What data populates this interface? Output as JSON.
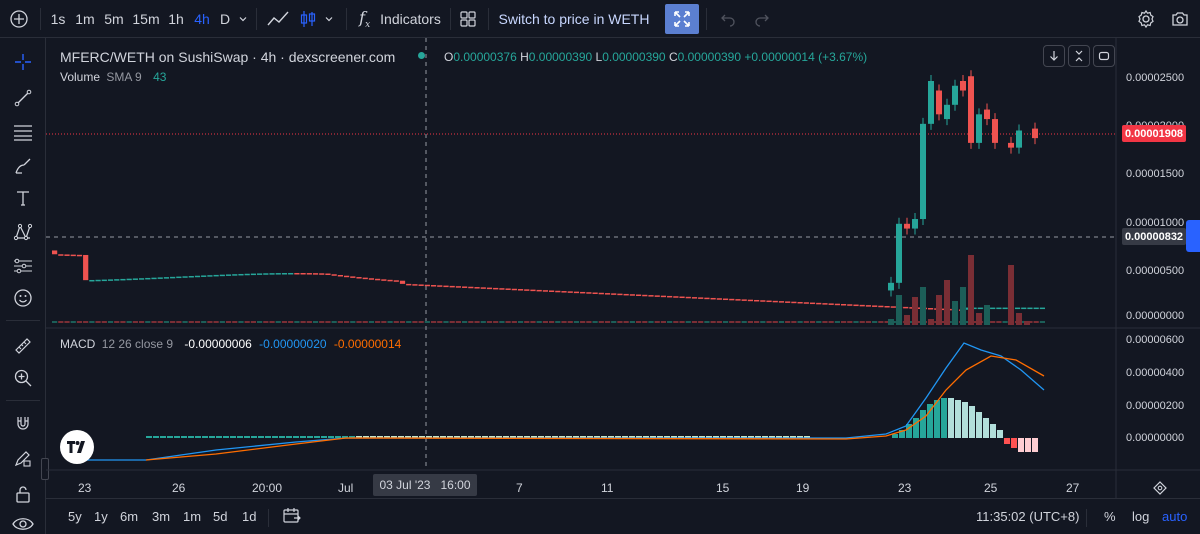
{
  "toolbar": {
    "intervals": [
      "1s",
      "1m",
      "5m",
      "15m",
      "1h",
      "4h",
      "D"
    ],
    "active_interval": "4h",
    "indicators_label": "Indicators",
    "switch_price_label": "Switch to price in WETH"
  },
  "legend": {
    "symbol": "MFERC/WETH on SushiSwap · 4h · dexscreener.com",
    "open_label": "O",
    "open": "0.00000376",
    "high_label": "H",
    "high": "0.00000390",
    "low_label": "L",
    "low": "0.00000390",
    "close_label": "C",
    "close": "0.00000390",
    "change": "+0.00000014 (+3.67%)",
    "volume_label": "Volume",
    "volume_sub": "SMA 9",
    "volume_value": "43",
    "macd_label": "MACD",
    "macd_sub": "12 26 close 9",
    "macd_hist": "-0.00000006",
    "macd_line": "-0.00000020",
    "macd_signal": "-0.00000014"
  },
  "price_axis": {
    "ticks": [
      "0.00002500",
      "0.00002000",
      "0.00001500",
      "0.00001000",
      "0.00000500",
      "0.00000000"
    ],
    "current_price": "0.00001908",
    "crosshair_price": "0.00000832"
  },
  "macd_axis": {
    "ticks": [
      "0.00000600",
      "0.00000400",
      "0.00000200",
      "0.00000000"
    ]
  },
  "time_axis": {
    "ticks": [
      "23",
      "26",
      "20:00",
      "Jul",
      "7",
      "11",
      "15",
      "19",
      "23",
      "25",
      "27"
    ],
    "crosshair_time": "03 Jul '23   16:00"
  },
  "bottom_bar": {
    "ranges": [
      "5y",
      "1y",
      "6m",
      "3m",
      "1m",
      "5d",
      "1d"
    ],
    "clock": "11:35:02 (UTC+8)",
    "percent_label": "%",
    "log_label": "log",
    "auto_label": "auto"
  },
  "colors": {
    "up": "#26a69a",
    "down": "#ef5350",
    "macd_line": "#2196f3",
    "signal_line": "#ff6d00",
    "accent": "#2962ff"
  },
  "icons": [
    "add-icon",
    "crosshair-icon",
    "trendline-icon",
    "fib-icon",
    "brush-icon",
    "text-icon",
    "pattern-icon",
    "forecast-icon",
    "emoji-icon",
    "ruler-icon",
    "zoom-in-icon",
    "magnet-icon",
    "lock-pencil-icon",
    "lock-icon",
    "eye-icon",
    "line-chart-icon",
    "candle-chart-icon",
    "fx-icon",
    "layout-grid-icon",
    "expand-icon",
    "undo-icon",
    "redo-icon",
    "gear-icon",
    "camera-icon",
    "calendar-goto-icon",
    "tradingview-logo"
  ]
}
